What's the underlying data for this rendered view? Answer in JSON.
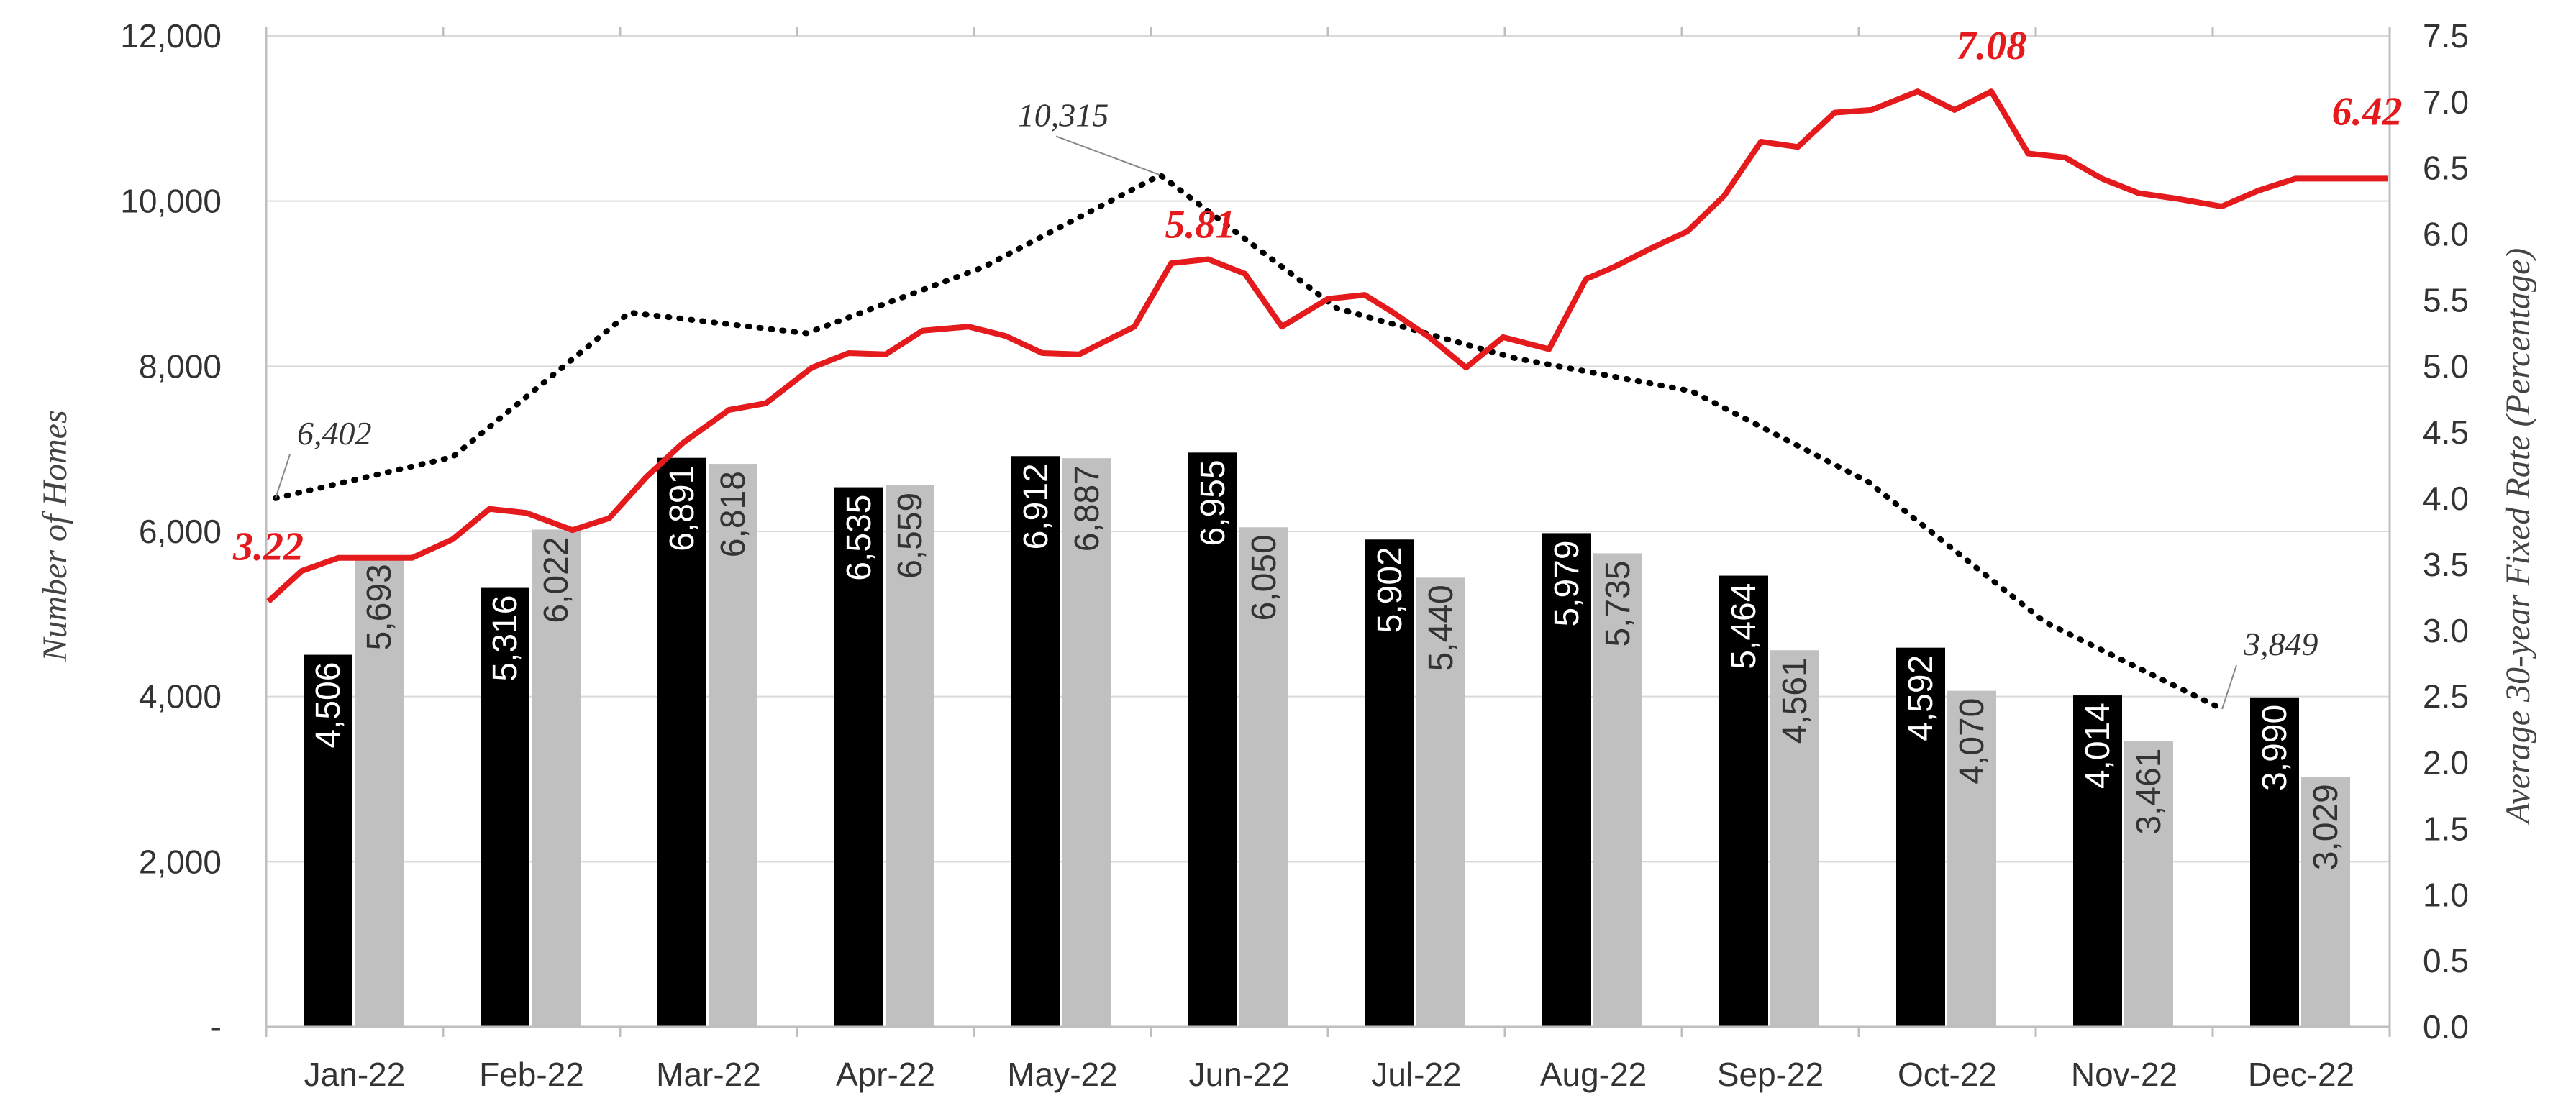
{
  "chart_data": {
    "type": "bar",
    "categories": [
      "Jan-22",
      "Feb-22",
      "Mar-22",
      "Apr-22",
      "May-22",
      "Jun-22",
      "Jul-22",
      "Aug-22",
      "Sep-22",
      "Oct-22",
      "Nov-22",
      "Dec-22"
    ],
    "series": [
      {
        "values": [
          4506,
          5316,
          6891,
          6535,
          6912,
          6955,
          5902,
          5979,
          5464,
          4592,
          4014,
          3990
        ],
        "labels": [
          "4,506",
          "5,316",
          "6,891",
          "6,535",
          "6,912",
          "6,955",
          "5,902",
          "5,979",
          "5,464",
          "4,592",
          "4,014",
          "3,990"
        ],
        "color": "#000000",
        "label_color": "#ffffff"
      },
      {
        "values": [
          5693,
          6022,
          6818,
          6559,
          6887,
          6050,
          5440,
          5735,
          4561,
          4070,
          3461,
          3029
        ],
        "labels": [
          "5,693",
          "6,022",
          "6,818",
          "6,559",
          "6,887",
          "6,050",
          "5,440",
          "5,735",
          "4,561",
          "4,070",
          "3,461",
          "3,029"
        ],
        "color": "#c0c0c0",
        "label_color": "#333333"
      }
    ],
    "dotted_line": {
      "values": [
        6402,
        6900,
        8650,
        8400,
        9200,
        10315,
        8700,
        8100,
        7700,
        6600,
        4900,
        3849
      ],
      "color": "#000000",
      "annotations": [
        {
          "index": 0,
          "text": "6,402"
        },
        {
          "index": 5,
          "text": "10,315"
        },
        {
          "index": 11,
          "text": "3,849"
        }
      ]
    },
    "rate_line": {
      "x": [
        0,
        0.18,
        0.38,
        0.58,
        0.78,
        1.0,
        1.2,
        1.4,
        1.65,
        1.85,
        2.05,
        2.25,
        2.5,
        2.7,
        2.95,
        3.15,
        3.35,
        3.55,
        3.8,
        4.0,
        4.2,
        4.4,
        4.7,
        4.9,
        5.1,
        5.3,
        5.5,
        5.75,
        5.95,
        6.1,
        6.3,
        6.5,
        6.7,
        6.95,
        7.15,
        7.3,
        7.5,
        7.7,
        7.9,
        8.1,
        8.3,
        8.5,
        8.7,
        8.95,
        9.15,
        9.35,
        9.55,
        9.75,
        9.95,
        10.15,
        10.35,
        10.6,
        10.8,
        11.0,
        11.2,
        11.35,
        11.5
      ],
      "values": [
        3.22,
        3.45,
        3.55,
        3.55,
        3.55,
        3.69,
        3.92,
        3.89,
        3.76,
        3.85,
        4.16,
        4.42,
        4.67,
        4.72,
        4.99,
        5.1,
        5.09,
        5.27,
        5.3,
        5.23,
        5.1,
        5.09,
        5.3,
        5.78,
        5.81,
        5.7,
        5.3,
        5.51,
        5.54,
        5.41,
        5.22,
        4.99,
        5.22,
        5.13,
        5.66,
        5.75,
        5.89,
        6.02,
        6.29,
        6.7,
        6.66,
        6.92,
        6.94,
        7.08,
        6.94,
        7.08,
        6.61,
        6.58,
        6.42,
        6.31,
        6.27,
        6.21,
        6.33,
        6.42,
        6.42,
        6.42,
        6.42
      ],
      "color": "#e41a1c",
      "annotations": [
        {
          "index": 0,
          "text": "3.22"
        },
        {
          "index": 24,
          "text": "5.81"
        },
        {
          "index": 45,
          "text": "7.08"
        },
        {
          "index": 55,
          "text": "6.42"
        }
      ]
    },
    "y_left": {
      "min": 0,
      "max": 12000,
      "ticks": [
        0,
        2000,
        4000,
        6000,
        8000,
        10000,
        12000
      ],
      "tick_labels": [
        "-",
        "2,000",
        "4,000",
        "6,000",
        "8,000",
        "10,000",
        "12,000"
      ],
      "label": "Number of  Homes"
    },
    "y_right": {
      "min": 0,
      "max": 7.5,
      "ticks": [
        0,
        0.5,
        1,
        1.5,
        2,
        2.5,
        3,
        3.5,
        4,
        4.5,
        5,
        5.5,
        6,
        6.5,
        7,
        7.5
      ],
      "tick_labels": [
        "0.0",
        "0.5",
        "1.0",
        "1.5",
        "2.0",
        "2.5",
        "3.0",
        "3.5",
        "4.0",
        "4.5",
        "5.0",
        "5.5",
        "6.0",
        "6.5",
        "7.0",
        "7.5"
      ],
      "label": "Average 30-year Fixed Rate (Percentage)"
    },
    "grid": true,
    "legend": "none"
  }
}
